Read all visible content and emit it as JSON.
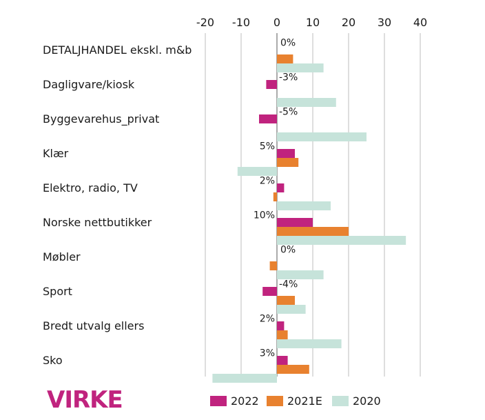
{
  "brand": {
    "logo_text": "VIRKE",
    "color": "#c0237e"
  },
  "chart_data": {
    "type": "bar",
    "orientation": "horizontal",
    "categories": [
      "DETALJHANDEL ekskl. m&b",
      "Dagligvare/kiosk",
      "Byggevarehus_privat",
      "Klær",
      "Elektro, radio, TV",
      "Norske nettbutikker",
      "Møbler",
      "Sport",
      "Bredt utvalg ellers",
      "Sko"
    ],
    "series": [
      {
        "name": "2022",
        "color": "#c0237e",
        "values": [
          0,
          -3,
          -5,
          5,
          2,
          10,
          0,
          -4,
          2,
          3
        ],
        "labels": [
          "0%",
          "-3%",
          "-5%",
          "5%",
          "2%",
          "10%",
          "0%",
          "-4%",
          "2%",
          "3%"
        ]
      },
      {
        "name": "2021E",
        "color": "#e8812f",
        "values": [
          4.5,
          0,
          0,
          6,
          -1,
          20,
          -2,
          5,
          3,
          9
        ]
      },
      {
        "name": "2020",
        "color": "#c6e3da",
        "values": [
          13,
          16.5,
          25,
          -11,
          15,
          36,
          13,
          8,
          18,
          -18
        ]
      }
    ],
    "xlim": [
      -20,
      40
    ],
    "xticks": [
      "-20",
      "-10",
      "0",
      "10",
      "20",
      "30",
      "40"
    ],
    "tick_values": [
      -20,
      -10,
      0,
      10,
      20,
      30,
      40
    ],
    "grid": true,
    "legend_position": "bottom",
    "title": "",
    "xlabel": "",
    "ylabel": ""
  }
}
